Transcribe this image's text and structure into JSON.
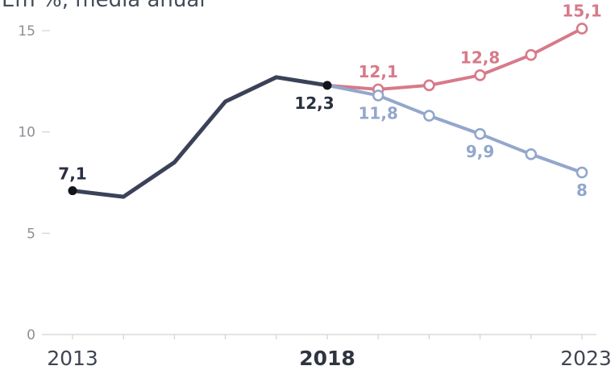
{
  "subtitle": "Em %, média anual",
  "chart_data": {
    "type": "line",
    "title": "",
    "subtitle": "Em %, média anual",
    "xlabel": "",
    "ylabel": "",
    "xlim": [
      2013,
      2023
    ],
    "ylim": [
      0,
      15
    ],
    "yticks": [
      0,
      5,
      10,
      15
    ],
    "yticks_labels": [
      "0",
      "5",
      "10",
      "15"
    ],
    "xticks_labeled": [
      {
        "year": 2013,
        "label": "2013",
        "bold": false
      },
      {
        "year": 2018,
        "label": "2018",
        "bold": true
      },
      {
        "year": 2023,
        "label": "2023",
        "bold": false
      }
    ],
    "xticks_minor": [
      2013,
      2014,
      2015,
      2016,
      2017,
      2018,
      2019,
      2020,
      2021,
      2022,
      2023
    ],
    "grid": false,
    "legend": "none",
    "series": [
      {
        "color": "#3b4258",
        "marker": "filled-endpoints",
        "x": [
          2013,
          2014,
          2015,
          2016,
          2017,
          2018
        ],
        "y": [
          7.1,
          6.8,
          8.5,
          11.5,
          12.7,
          12.3
        ],
        "labels": [
          {
            "x": 2013,
            "y": 7.1,
            "text": "7,1",
            "anchor": "above"
          },
          {
            "x": 2018,
            "y": 12.3,
            "text": "12,3",
            "anchor": "below-left"
          }
        ]
      },
      {
        "color": "#d77a89",
        "marker": "open-circle",
        "x": [
          2018,
          2019,
          2020,
          2021,
          2022,
          2023
        ],
        "y": [
          12.3,
          12.1,
          12.3,
          12.8,
          13.8,
          15.1
        ],
        "labels": [
          {
            "x": 2019,
            "y": 12.1,
            "text": "12,1",
            "anchor": "above"
          },
          {
            "x": 2021,
            "y": 12.8,
            "text": "12,8",
            "anchor": "above"
          },
          {
            "x": 2023,
            "y": 15.1,
            "text": "15,1",
            "anchor": "above"
          }
        ]
      },
      {
        "color": "#93a7cc",
        "marker": "open-circle",
        "x": [
          2018,
          2019,
          2020,
          2021,
          2022,
          2023
        ],
        "y": [
          12.3,
          11.8,
          10.8,
          9.9,
          8.9,
          8.0
        ],
        "labels": [
          {
            "x": 2019,
            "y": 11.8,
            "text": "11,8",
            "anchor": "below"
          },
          {
            "x": 2021,
            "y": 9.9,
            "text": "9,9",
            "anchor": "below"
          },
          {
            "x": 2023,
            "y": 8.0,
            "text": "8",
            "anchor": "below"
          }
        ]
      }
    ]
  }
}
